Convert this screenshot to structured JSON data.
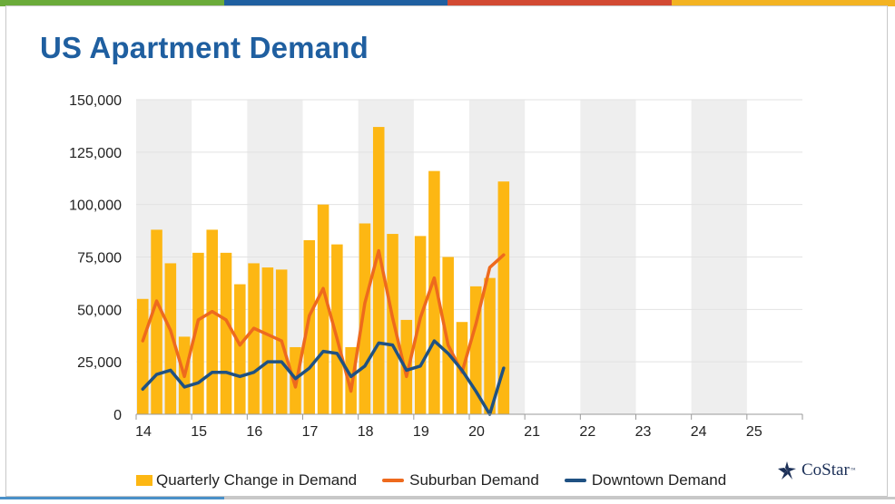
{
  "header": {
    "title": "US Apartment Demand"
  },
  "brand": {
    "logo_text": "CoStar",
    "trademark": "™"
  },
  "colors": {
    "bar": "#fdb713",
    "suburban": "#ee6a1d",
    "downtown": "#1f5182",
    "band": "#eeeeee",
    "title": "#1f5fa0",
    "top_stripe": [
      "#6bab3a",
      "#1f5fa0",
      "#d24a33",
      "#f3b322"
    ]
  },
  "chart_data": {
    "type": "bar",
    "title": "US Apartment Demand",
    "xlabel": "",
    "ylabel": "",
    "ylim": [
      0,
      150000
    ],
    "xlim": [
      14,
      26
    ],
    "y_ticks": [
      "0",
      "25,000",
      "50,000",
      "75,000",
      "100,000",
      "125,000",
      "150,000"
    ],
    "y_tick_values": [
      0,
      25000,
      50000,
      75000,
      100000,
      125000,
      150000
    ],
    "x_ticks": [
      "14",
      "15",
      "16",
      "17",
      "18",
      "19",
      "20",
      "21",
      "22",
      "23",
      "24",
      "25"
    ],
    "grid": true,
    "legend_position": "bottom",
    "categories": [
      "14Q1",
      "14Q2",
      "14Q3",
      "14Q4",
      "15Q1",
      "15Q2",
      "15Q3",
      "15Q4",
      "16Q1",
      "16Q2",
      "16Q3",
      "16Q4",
      "17Q1",
      "17Q2",
      "17Q3",
      "17Q4",
      "18Q1",
      "18Q2",
      "18Q3",
      "18Q4",
      "19Q1",
      "19Q2",
      "19Q3",
      "19Q4",
      "20Q1",
      "20Q2",
      "20Q3"
    ],
    "series": [
      {
        "name": "Quarterly Change in Demand",
        "type": "bar",
        "values": [
          55000,
          88000,
          72000,
          37000,
          77000,
          88000,
          77000,
          62000,
          72000,
          70000,
          69000,
          32000,
          83000,
          100000,
          81000,
          32000,
          91000,
          137000,
          86000,
          45000,
          85000,
          116000,
          75000,
          44000,
          61000,
          65000,
          111000
        ]
      },
      {
        "name": "Suburban Demand",
        "type": "line",
        "values": [
          35000,
          54000,
          40000,
          18000,
          45000,
          49000,
          45000,
          33000,
          41000,
          38000,
          35000,
          13000,
          47000,
          60000,
          36000,
          11000,
          53000,
          78000,
          46000,
          18000,
          46000,
          65000,
          33000,
          20000,
          43000,
          70000,
          76000
        ]
      },
      {
        "name": "Downtown Demand",
        "type": "line",
        "values": [
          12000,
          19000,
          21000,
          13000,
          15000,
          20000,
          20000,
          18000,
          20000,
          25000,
          25000,
          17000,
          22000,
          30000,
          29000,
          18000,
          23000,
          34000,
          33000,
          21000,
          23000,
          35000,
          29000,
          21000,
          11000,
          0,
          22000
        ]
      }
    ]
  }
}
